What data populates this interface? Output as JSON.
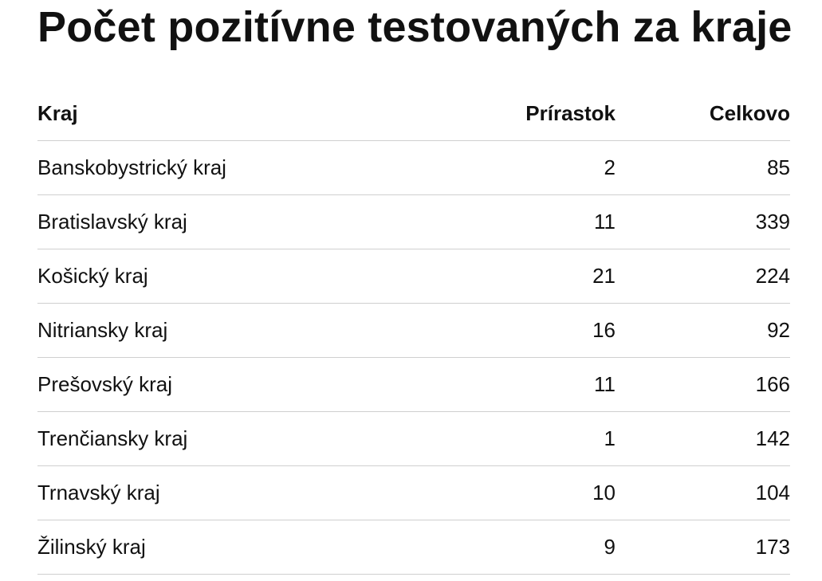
{
  "page": {
    "title": "Počet pozitívne testovaných za kraje"
  },
  "table": {
    "headers": {
      "kraj": "Kraj",
      "prirastok": "Prírastok",
      "celkovo": "Celkovo"
    },
    "rows": [
      {
        "kraj": "Banskobystrický kraj",
        "prirastok": "2",
        "celkovo": "85"
      },
      {
        "kraj": "Bratislavský kraj",
        "prirastok": "11",
        "celkovo": "339"
      },
      {
        "kraj": "Košický kraj",
        "prirastok": "21",
        "celkovo": "224"
      },
      {
        "kraj": "Nitriansky kraj",
        "prirastok": "16",
        "celkovo": "92"
      },
      {
        "kraj": "Prešovský kraj",
        "prirastok": "11",
        "celkovo": "166"
      },
      {
        "kraj": "Trenčiansky kraj",
        "prirastok": "1",
        "celkovo": "142"
      },
      {
        "kraj": "Trnavský kraj",
        "prirastok": "10",
        "celkovo": "104"
      },
      {
        "kraj": "Žilinský kraj",
        "prirastok": "9",
        "celkovo": "173"
      }
    ]
  }
}
